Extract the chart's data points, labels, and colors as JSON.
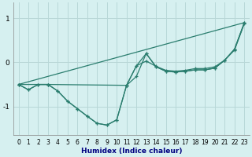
{
  "xlabel": "Humidex (Indice chaleur)",
  "background_color": "#d6f0f0",
  "grid_color": "#b8d8d8",
  "line_color": "#2a7d6e",
  "xlim": [
    -0.5,
    23.5
  ],
  "ylim": [
    -1.65,
    1.35
  ],
  "yticks": [
    -1,
    0,
    1
  ],
  "xticks": [
    0,
    1,
    2,
    3,
    4,
    5,
    6,
    7,
    8,
    9,
    10,
    11,
    12,
    13,
    14,
    15,
    16,
    17,
    18,
    19,
    20,
    21,
    22,
    23
  ],
  "curve1_x": [
    0,
    1,
    2,
    3,
    4,
    5,
    6,
    7,
    8,
    9,
    10,
    11,
    12,
    13,
    14,
    15,
    16,
    17,
    18,
    19,
    20,
    21,
    22,
    23
  ],
  "curve1_y": [
    -0.5,
    -0.62,
    -0.5,
    -0.5,
    -0.65,
    -0.88,
    -1.05,
    -1.22,
    -1.38,
    -1.42,
    -1.3,
    -0.52,
    -0.32,
    0.2,
    -0.1,
    -0.2,
    -0.22,
    -0.2,
    -0.17,
    -0.17,
    -0.13,
    0.05,
    0.3,
    0.9
  ],
  "curve2_x": [
    0,
    1,
    2,
    3,
    4,
    5,
    6,
    7,
    8,
    9,
    10,
    11,
    12,
    13,
    14,
    15,
    16,
    17,
    18,
    19,
    20,
    21,
    22,
    23
  ],
  "curve2_y": [
    -0.5,
    -0.62,
    -0.5,
    -0.5,
    -0.65,
    -0.88,
    -1.05,
    -1.22,
    -1.38,
    -1.42,
    -1.3,
    -0.52,
    -0.08,
    0.03,
    -0.09,
    -0.18,
    -0.2,
    -0.18,
    -0.14,
    -0.14,
    -0.1,
    0.05,
    0.28,
    0.88
  ],
  "curve3_x": [
    0,
    3,
    11,
    12,
    13,
    14,
    15,
    16,
    17,
    18,
    19,
    20,
    21,
    22,
    23
  ],
  "curve3_y": [
    -0.5,
    -0.5,
    -0.52,
    -0.08,
    0.2,
    -0.1,
    -0.2,
    -0.22,
    -0.2,
    -0.17,
    -0.17,
    -0.13,
    0.05,
    0.3,
    0.9
  ],
  "curve4_x": [
    0,
    23
  ],
  "curve4_y": [
    -0.5,
    0.9
  ],
  "xlabel_fontsize": 6.5,
  "xlabel_color": "#000080",
  "tick_fontsize": 5.5,
  "ytick_fontsize": 6.5
}
